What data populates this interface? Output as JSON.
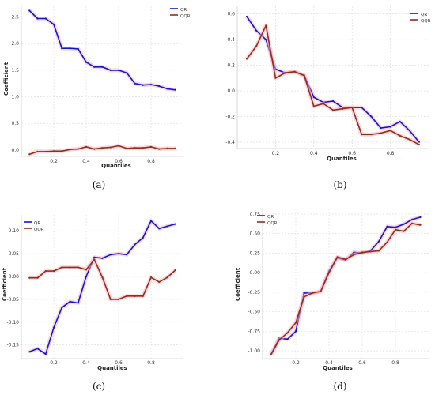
{
  "chart_data": [
    {
      "type": "line",
      "caption": "(a)",
      "xlabel": "Quantiles",
      "ylabel": "Coefficient",
      "x_ticks": [
        "0.2",
        "0.4",
        "0.6",
        "0.8"
      ],
      "y_ticks": [
        "0.0",
        "0.5",
        "1.0",
        "1.5",
        "2.0",
        "2.5"
      ],
      "xlim": [
        0.0,
        1.0
      ],
      "ylim": [
        -0.12,
        2.7
      ],
      "grid": true,
      "legend_position": "top-right",
      "x": [
        0.05,
        0.1,
        0.15,
        0.2,
        0.25,
        0.3,
        0.35,
        0.4,
        0.45,
        0.5,
        0.55,
        0.6,
        0.65,
        0.7,
        0.75,
        0.8,
        0.85,
        0.9,
        0.95
      ],
      "series": [
        {
          "name": "QR",
          "color": "#1515d6",
          "values": [
            2.62,
            2.47,
            2.47,
            2.36,
            1.91,
            1.91,
            1.9,
            1.65,
            1.56,
            1.56,
            1.5,
            1.5,
            1.45,
            1.25,
            1.22,
            1.23,
            1.2,
            1.15,
            1.13
          ]
        },
        {
          "name": "QQR",
          "color": "#9b2a12",
          "values": [
            -0.08,
            -0.03,
            -0.03,
            -0.02,
            -0.02,
            0.01,
            0.02,
            0.06,
            0.02,
            0.04,
            0.05,
            0.08,
            0.03,
            0.04,
            0.04,
            0.06,
            0.02,
            0.03,
            0.03
          ]
        }
      ]
    },
    {
      "type": "line",
      "caption": "(b)",
      "xlabel": "Quantiles",
      "ylabel": "",
      "x_ticks": [
        "0.2",
        "0.4",
        "0.6",
        "0.8"
      ],
      "y_ticks": [
        "-0.4",
        "-0.2",
        "0.0",
        "0.2",
        "0.4",
        "0.6"
      ],
      "xlim": [
        0.0,
        1.0
      ],
      "ylim": [
        -0.45,
        0.66
      ],
      "grid": true,
      "legend_position": "top-right",
      "x": [
        0.05,
        0.1,
        0.15,
        0.2,
        0.25,
        0.3,
        0.35,
        0.4,
        0.45,
        0.5,
        0.55,
        0.6,
        0.65,
        0.7,
        0.75,
        0.8,
        0.85,
        0.9,
        0.95
      ],
      "series": [
        {
          "name": "QR",
          "color": "#1515d6",
          "values": [
            0.58,
            0.47,
            0.4,
            0.17,
            0.14,
            0.15,
            0.12,
            -0.05,
            -0.09,
            -0.08,
            -0.13,
            -0.13,
            -0.13,
            -0.2,
            -0.29,
            -0.28,
            -0.24,
            -0.31,
            -0.4
          ]
        },
        {
          "name": "QQR",
          "color": "#9b2a12",
          "values": [
            0.25,
            0.35,
            0.51,
            0.1,
            0.14,
            0.15,
            0.12,
            -0.12,
            -0.1,
            -0.15,
            -0.14,
            -0.13,
            -0.34,
            -0.34,
            -0.33,
            -0.31,
            -0.35,
            -0.38,
            -0.42
          ]
        }
      ]
    },
    {
      "type": "line",
      "caption": "(c)",
      "xlabel": "Quantiles",
      "ylabel": "Coefficient",
      "x_ticks": [
        "0.2",
        "0.4",
        "0.6",
        "0.8"
      ],
      "y_ticks": [
        "-0.15",
        "-0.10",
        "-0.05",
        "0.00",
        "0.05",
        "0.10"
      ],
      "xlim": [
        0.0,
        1.0
      ],
      "ylim": [
        -0.18,
        0.135
      ],
      "grid": true,
      "legend_position": "top-left",
      "x": [
        0.05,
        0.1,
        0.15,
        0.2,
        0.25,
        0.3,
        0.35,
        0.4,
        0.45,
        0.5,
        0.55,
        0.6,
        0.65,
        0.7,
        0.75,
        0.8,
        0.85,
        0.9,
        0.95
      ],
      "series": [
        {
          "name": "QR",
          "color": "#1515d6",
          "values": [
            -0.165,
            -0.158,
            -0.17,
            -0.112,
            -0.068,
            -0.055,
            -0.058,
            0.0,
            0.042,
            0.04,
            0.048,
            0.05,
            0.048,
            0.07,
            0.085,
            0.122,
            0.105,
            0.11,
            0.115
          ]
        },
        {
          "name": "QQR",
          "color": "#9b2a12",
          "values": [
            -0.003,
            -0.003,
            0.012,
            0.012,
            0.02,
            0.02,
            0.02,
            0.015,
            0.037,
            -0.002,
            -0.05,
            -0.05,
            -0.043,
            -0.043,
            -0.043,
            -0.002,
            -0.012,
            -0.002,
            0.014
          ]
        }
      ]
    },
    {
      "type": "line",
      "caption": "(d)",
      "xlabel": "Quantiles",
      "ylabel": "Coefficient",
      "x_ticks": [
        "0.2",
        "0.4",
        "0.6",
        "0.8"
      ],
      "y_ticks": [
        "-1.00",
        "-0.75",
        "-0.50",
        "-0.25",
        "0.00",
        "0.25",
        "0.50",
        "0.75"
      ],
      "xlim": [
        0.0,
        1.0
      ],
      "ylim": [
        -1.1,
        0.82
      ],
      "grid": true,
      "legend_position": "top-left",
      "x": [
        0.05,
        0.1,
        0.15,
        0.2,
        0.25,
        0.3,
        0.35,
        0.4,
        0.45,
        0.5,
        0.55,
        0.6,
        0.65,
        0.7,
        0.75,
        0.8,
        0.85,
        0.9,
        0.95
      ],
      "series": [
        {
          "name": "QR",
          "color": "#1515d6",
          "values": [
            -1.05,
            -0.84,
            -0.85,
            -0.75,
            -0.26,
            -0.26,
            -0.24,
            0.02,
            0.19,
            0.16,
            0.26,
            0.25,
            0.28,
            0.4,
            0.59,
            0.58,
            0.62,
            0.68,
            0.71
          ]
        },
        {
          "name": "QQR",
          "color": "#9b2a12",
          "values": [
            -1.05,
            -0.86,
            -0.77,
            -0.64,
            -0.31,
            -0.26,
            -0.24,
            0.0,
            0.2,
            0.17,
            0.23,
            0.26,
            0.27,
            0.28,
            0.39,
            0.55,
            0.53,
            0.63,
            0.61
          ]
        }
      ]
    }
  ]
}
